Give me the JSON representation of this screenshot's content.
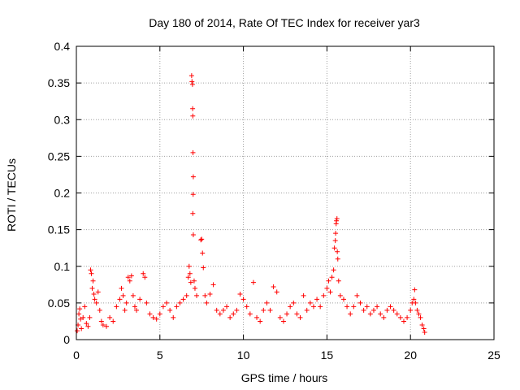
{
  "chart_data": {
    "type": "scatter",
    "title": "Day 180 of 2014, Rate Of TEC Index for receiver yar3",
    "xlabel": "GPS time / hours",
    "ylabel": "ROTI / TECUs",
    "xlim": [
      0,
      25
    ],
    "ylim": [
      0,
      0.4
    ],
    "x_ticks": [
      0,
      5,
      10,
      15,
      20,
      25
    ],
    "x_tick_labels": [
      "0",
      "5",
      "10",
      "15",
      "20",
      "25"
    ],
    "y_ticks": [
      0,
      0.05,
      0.1,
      0.15,
      0.2,
      0.25,
      0.3,
      0.35,
      0.4
    ],
    "y_tick_labels": [
      "0",
      "0.05",
      "0.1",
      "0.15",
      "0.2",
      "0.25",
      "0.3",
      "0.35",
      "0.4"
    ],
    "grid": true,
    "marker": "+",
    "color": "#ff0000",
    "series": [
      {
        "points": [
          [
            0.05,
            0.012
          ],
          [
            0.1,
            0.02
          ],
          [
            0.15,
            0.035
          ],
          [
            0.2,
            0.042
          ],
          [
            0.25,
            0.028
          ],
          [
            0.3,
            0.015
          ],
          [
            0.4,
            0.03
          ],
          [
            0.5,
            0.045
          ],
          [
            0.6,
            0.022
          ],
          [
            0.7,
            0.018
          ],
          [
            0.8,
            0.03
          ],
          [
            0.85,
            0.095
          ],
          [
            0.9,
            0.09
          ],
          [
            0.95,
            0.07
          ],
          [
            1.0,
            0.08
          ],
          [
            1.05,
            0.062
          ],
          [
            1.1,
            0.055
          ],
          [
            1.2,
            0.05
          ],
          [
            1.3,
            0.065
          ],
          [
            1.4,
            0.04
          ],
          [
            1.5,
            0.025
          ],
          [
            1.6,
            0.02
          ],
          [
            1.8,
            0.018
          ],
          [
            2.0,
            0.03
          ],
          [
            2.2,
            0.025
          ],
          [
            2.4,
            0.045
          ],
          [
            2.6,
            0.055
          ],
          [
            2.7,
            0.07
          ],
          [
            2.8,
            0.06
          ],
          [
            2.9,
            0.04
          ],
          [
            3.0,
            0.05
          ],
          [
            3.1,
            0.085
          ],
          [
            3.2,
            0.08
          ],
          [
            3.3,
            0.087
          ],
          [
            3.4,
            0.06
          ],
          [
            3.5,
            0.045
          ],
          [
            3.6,
            0.04
          ],
          [
            3.8,
            0.055
          ],
          [
            4.0,
            0.09
          ],
          [
            4.1,
            0.085
          ],
          [
            4.2,
            0.05
          ],
          [
            4.4,
            0.035
          ],
          [
            4.6,
            0.03
          ],
          [
            4.8,
            0.028
          ],
          [
            5.0,
            0.035
          ],
          [
            5.2,
            0.045
          ],
          [
            5.4,
            0.05
          ],
          [
            5.6,
            0.04
          ],
          [
            5.8,
            0.03
          ],
          [
            6.0,
            0.045
          ],
          [
            6.2,
            0.05
          ],
          [
            6.4,
            0.055
          ],
          [
            6.6,
            0.06
          ],
          [
            6.7,
            0.085
          ],
          [
            6.75,
            0.1
          ],
          [
            6.8,
            0.09
          ],
          [
            6.85,
            0.078
          ],
          [
            6.9,
            0.36
          ],
          [
            6.92,
            0.352
          ],
          [
            6.95,
            0.348
          ],
          [
            6.96,
            0.315
          ],
          [
            6.97,
            0.305
          ],
          [
            6.98,
            0.255
          ],
          [
            7.0,
            0.222
          ],
          [
            6.99,
            0.198
          ],
          [
            6.97,
            0.172
          ],
          [
            7.0,
            0.143
          ],
          [
            7.05,
            0.08
          ],
          [
            7.1,
            0.07
          ],
          [
            7.2,
            0.06
          ],
          [
            7.5,
            0.137
          ],
          [
            7.45,
            0.136
          ],
          [
            7.55,
            0.118
          ],
          [
            7.6,
            0.098
          ],
          [
            7.7,
            0.06
          ],
          [
            7.8,
            0.05
          ],
          [
            8.0,
            0.062
          ],
          [
            8.2,
            0.075
          ],
          [
            8.4,
            0.04
          ],
          [
            8.6,
            0.035
          ],
          [
            8.8,
            0.04
          ],
          [
            9.0,
            0.045
          ],
          [
            9.2,
            0.03
          ],
          [
            9.4,
            0.035
          ],
          [
            9.6,
            0.04
          ],
          [
            9.8,
            0.062
          ],
          [
            10.0,
            0.055
          ],
          [
            10.2,
            0.045
          ],
          [
            10.4,
            0.035
          ],
          [
            10.6,
            0.078
          ],
          [
            10.8,
            0.03
          ],
          [
            11.0,
            0.025
          ],
          [
            11.2,
            0.04
          ],
          [
            11.4,
            0.05
          ],
          [
            11.6,
            0.04
          ],
          [
            11.8,
            0.072
          ],
          [
            12.0,
            0.065
          ],
          [
            12.2,
            0.03
          ],
          [
            12.4,
            0.025
          ],
          [
            12.6,
            0.035
          ],
          [
            12.8,
            0.045
          ],
          [
            13.0,
            0.05
          ],
          [
            13.2,
            0.035
          ],
          [
            13.4,
            0.03
          ],
          [
            13.6,
            0.06
          ],
          [
            13.8,
            0.04
          ],
          [
            14.0,
            0.05
          ],
          [
            14.2,
            0.045
          ],
          [
            14.4,
            0.055
          ],
          [
            14.6,
            0.045
          ],
          [
            14.8,
            0.06
          ],
          [
            15.0,
            0.07
          ],
          [
            15.1,
            0.08
          ],
          [
            15.2,
            0.065
          ],
          [
            15.3,
            0.085
          ],
          [
            15.4,
            0.095
          ],
          [
            15.45,
            0.125
          ],
          [
            15.5,
            0.135
          ],
          [
            15.52,
            0.145
          ],
          [
            15.55,
            0.158
          ],
          [
            15.57,
            0.162
          ],
          [
            15.6,
            0.165
          ],
          [
            15.62,
            0.12
          ],
          [
            15.65,
            0.11
          ],
          [
            15.7,
            0.08
          ],
          [
            15.8,
            0.06
          ],
          [
            16.0,
            0.055
          ],
          [
            16.2,
            0.045
          ],
          [
            16.4,
            0.035
          ],
          [
            16.6,
            0.045
          ],
          [
            16.8,
            0.06
          ],
          [
            17.0,
            0.05
          ],
          [
            17.2,
            0.04
          ],
          [
            17.4,
            0.045
          ],
          [
            17.6,
            0.035
          ],
          [
            17.8,
            0.04
          ],
          [
            18.0,
            0.045
          ],
          [
            18.2,
            0.035
          ],
          [
            18.4,
            0.03
          ],
          [
            18.6,
            0.04
          ],
          [
            18.8,
            0.045
          ],
          [
            19.0,
            0.04
          ],
          [
            19.2,
            0.035
          ],
          [
            19.4,
            0.03
          ],
          [
            19.6,
            0.025
          ],
          [
            19.8,
            0.03
          ],
          [
            20.0,
            0.04
          ],
          [
            20.1,
            0.05
          ],
          [
            20.2,
            0.055
          ],
          [
            20.25,
            0.068
          ],
          [
            20.3,
            0.05
          ],
          [
            20.4,
            0.04
          ],
          [
            20.5,
            0.035
          ],
          [
            20.6,
            0.03
          ],
          [
            20.7,
            0.02
          ],
          [
            20.8,
            0.015
          ],
          [
            20.85,
            0.01
          ]
        ]
      }
    ]
  }
}
